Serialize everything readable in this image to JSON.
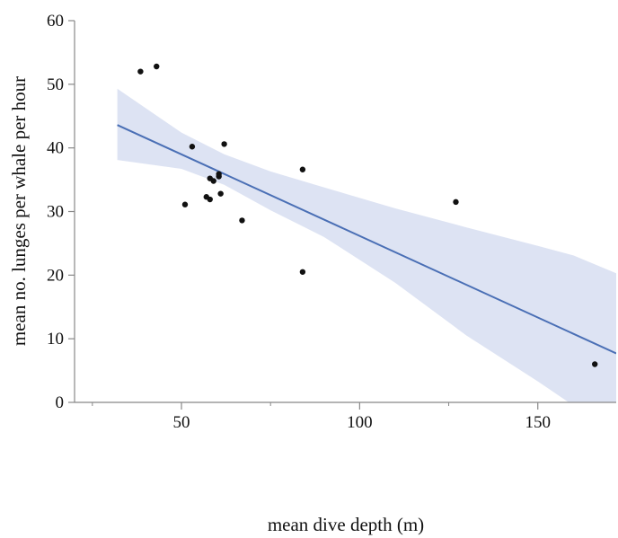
{
  "chart_data": {
    "type": "scatter",
    "xlabel": "mean dive depth (m)",
    "ylabel": "mean no. lunges per whale per hour",
    "xlim": [
      20,
      172
    ],
    "ylim": [
      0,
      60
    ],
    "x_ticks": [
      50,
      100,
      150
    ],
    "x_minor_ticks": [
      25,
      75,
      125
    ],
    "y_ticks": [
      0,
      10,
      20,
      30,
      40,
      50,
      60
    ],
    "grid": false,
    "points": [
      {
        "x": 38.5,
        "y": 52.0
      },
      {
        "x": 43.0,
        "y": 52.8
      },
      {
        "x": 51.0,
        "y": 31.1
      },
      {
        "x": 53.0,
        "y": 40.2
      },
      {
        "x": 57.0,
        "y": 32.3
      },
      {
        "x": 58.0,
        "y": 31.9
      },
      {
        "x": 58.0,
        "y": 35.2
      },
      {
        "x": 59.0,
        "y": 34.8
      },
      {
        "x": 60.5,
        "y": 35.5
      },
      {
        "x": 60.5,
        "y": 35.9
      },
      {
        "x": 61.0,
        "y": 32.8
      },
      {
        "x": 62.0,
        "y": 40.6
      },
      {
        "x": 67.0,
        "y": 28.6
      },
      {
        "x": 84.0,
        "y": 36.6
      },
      {
        "x": 84.0,
        "y": 20.5
      },
      {
        "x": 127.0,
        "y": 31.5
      },
      {
        "x": 166.0,
        "y": 6.0
      }
    ],
    "regression_line": {
      "x": [
        32,
        172
      ],
      "y": [
        43.6,
        7.7
      ]
    },
    "confidence_band": {
      "x": [
        32,
        50,
        62,
        75,
        90,
        110,
        130,
        150,
        160,
        172
      ],
      "upper": [
        49.3,
        42.4,
        39.0,
        36.3,
        33.8,
        30.5,
        27.5,
        24.6,
        23.1,
        20.3
      ],
      "lower": [
        38.1,
        36.7,
        34.2,
        30.2,
        26.0,
        18.8,
        10.5,
        3.3,
        -0.5,
        -5.0
      ]
    },
    "colors": {
      "point": "#111111",
      "line": "#4a6fb5",
      "band": "#dde3f3",
      "axis": "#888888"
    }
  }
}
